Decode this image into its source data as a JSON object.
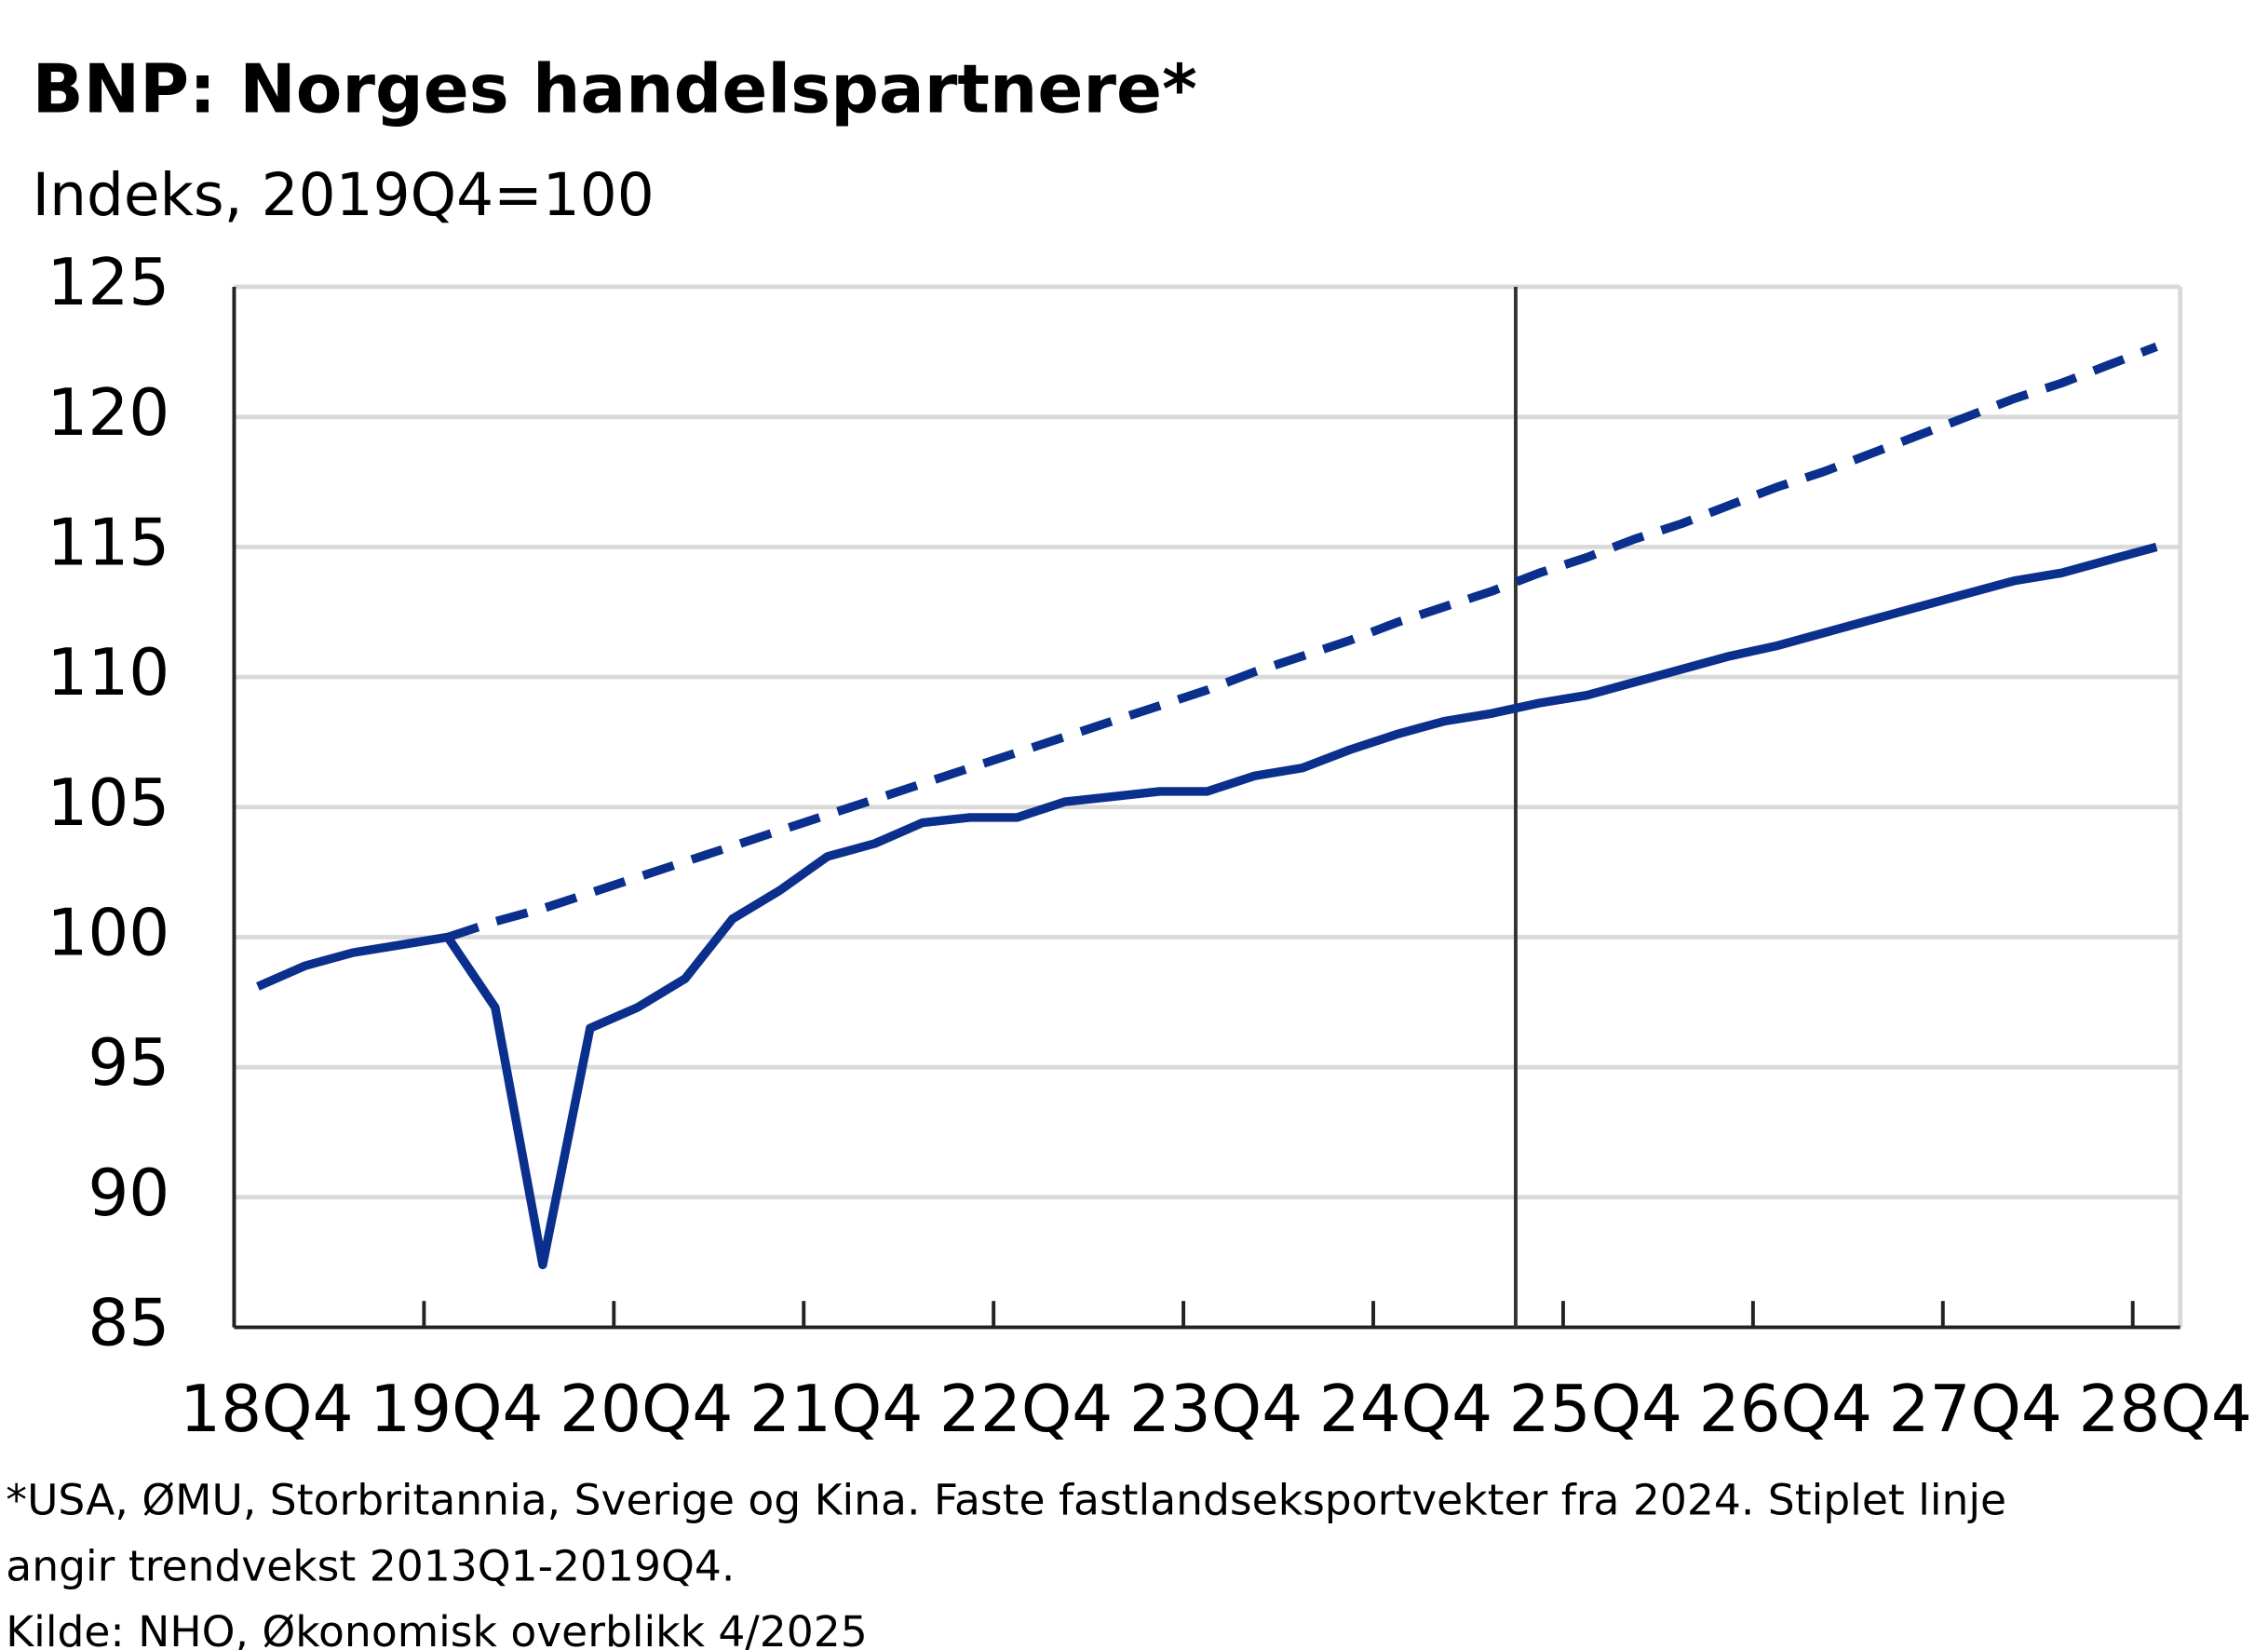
{
  "chart_data": {
    "type": "line",
    "title": "BNP:  Norges  handelspartnere*",
    "subtitle": "Indeks, 2019Q4=100",
    "footnote": [
      "*USA, ØMU, Storbritannia, Sverige og Kina. Faste fastlandseksportvekter fra 2024. Stiplet linje",
      "angir trendvekst 2013Q1-2019Q4."
    ],
    "source": "Kilde: NHO, Økonomisk overblikk 4/2025",
    "categories": [
      "18Q4",
      null,
      null,
      null,
      "19Q4",
      null,
      null,
      null,
      "20Q4",
      null,
      null,
      null,
      "21Q4",
      null,
      null,
      null,
      "22Q4",
      null,
      null,
      null,
      "23Q4",
      null,
      null,
      null,
      "24Q4",
      null,
      null,
      null,
      "25Q4",
      null,
      null,
      null,
      "26Q4",
      null,
      null,
      null,
      "27Q4",
      null,
      null,
      null,
      "28Q4"
    ],
    "series": [
      {
        "color": "#0b2f8c",
        "dashed": false,
        "values": [
          98.1,
          98.9,
          99.4,
          99.7,
          100.0,
          97.3,
          87.4,
          96.5,
          97.3,
          98.4,
          100.7,
          101.8,
          103.1,
          103.6,
          104.4,
          104.6,
          104.6,
          105.2,
          105.4,
          105.6,
          105.6,
          106.2,
          106.5,
          107.2,
          107.8,
          108.3,
          108.6,
          109.0,
          109.3,
          109.8,
          110.3,
          110.8,
          111.2,
          111.7,
          112.2,
          112.7,
          113.2,
          113.7,
          114.0,
          114.5,
          115.0
        ]
      },
      {
        "color": "#0b2f8c",
        "dashed": true,
        "values": [
          null,
          null,
          null,
          null,
          100.0,
          100.6,
          101.1,
          101.7,
          102.3,
          102.9,
          103.5,
          104.1,
          104.7,
          105.3,
          105.9,
          106.5,
          107.1,
          107.7,
          108.3,
          108.9,
          109.5,
          110.2,
          110.8,
          111.4,
          112.1,
          112.7,
          113.3,
          114.0,
          114.6,
          115.3,
          115.9,
          116.6,
          117.3,
          117.9,
          118.6,
          119.3,
          120.0,
          120.7,
          121.3,
          122.0,
          122.7
        ]
      }
    ],
    "ylim": [
      85,
      125
    ],
    "yticks": [
      85,
      90,
      95,
      100,
      105,
      110,
      115,
      120,
      125
    ],
    "grid": true,
    "vline_after_category_index": 26
  }
}
